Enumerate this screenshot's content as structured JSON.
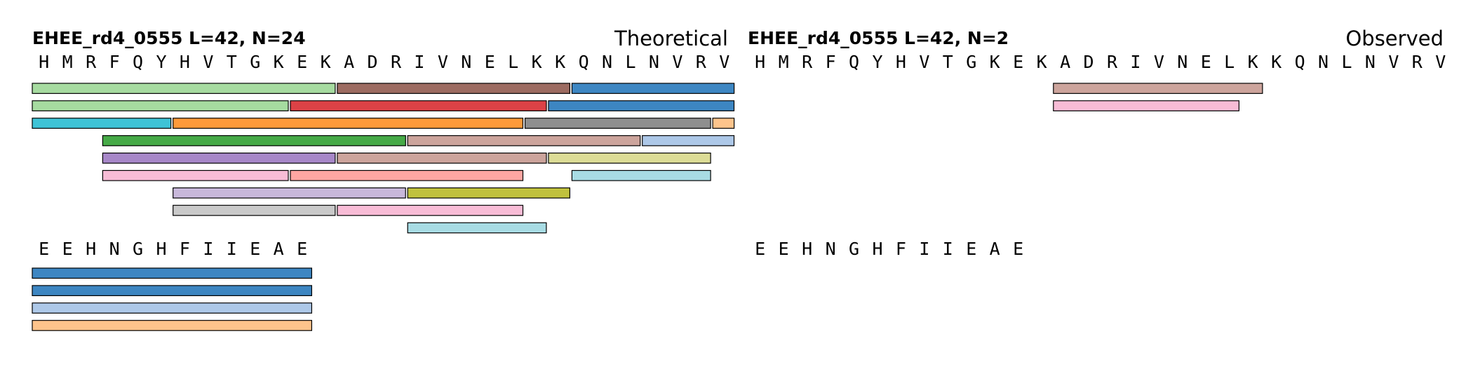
{
  "panels": [
    {
      "id": "theoretical",
      "title": "EHEE_rd4_0555  L=42, N=24",
      "label": "Theoretical",
      "rows": [
        {
          "sequence": [
            "H",
            "M",
            "R",
            "F",
            "Q",
            "Y",
            "H",
            "V",
            "T",
            "G",
            "K",
            "E",
            "K",
            "A",
            "D",
            "R",
            "I",
            "V",
            "N",
            "E",
            "L",
            "K",
            "K",
            "Q",
            "N",
            "L",
            "N",
            "V",
            "R",
            "V"
          ],
          "peptides": [
            {
              "start": 1,
              "end": 13,
              "color": "#a6dba0"
            },
            {
              "start": 14,
              "end": 23,
              "color": "#9c6b61"
            },
            {
              "start": 24,
              "end": 30,
              "color": "#3d86c2"
            },
            {
              "start": 1,
              "end": 11,
              "color": "#a6dba0"
            },
            {
              "start": 12,
              "end": 22,
              "color": "#dc4246"
            },
            {
              "start": 23,
              "end": 30,
              "color": "#3d86c2"
            },
            {
              "start": 1,
              "end": 6,
              "color": "#3ec3d6"
            },
            {
              "start": 7,
              "end": 21,
              "color": "#fe9a3a"
            },
            {
              "start": 22,
              "end": 29,
              "color": "#8f8f8f"
            },
            {
              "start": 30,
              "end": 30,
              "color": "#fec48c"
            },
            {
              "start": 4,
              "end": 16,
              "color": "#46aa47"
            },
            {
              "start": 17,
              "end": 26,
              "color": "#cca49c"
            },
            {
              "start": 27,
              "end": 30,
              "color": "#adc8e8"
            },
            {
              "start": 4,
              "end": 13,
              "color": "#a787c8"
            },
            {
              "start": 14,
              "end": 22,
              "color": "#cca49c"
            },
            {
              "start": 23,
              "end": 29,
              "color": "#dcdc96"
            },
            {
              "start": 4,
              "end": 11,
              "color": "#f8bcd6"
            },
            {
              "start": 12,
              "end": 21,
              "color": "#ffa6a2"
            },
            {
              "start": 24,
              "end": 29,
              "color": "#a8dce4"
            },
            {
              "start": 7,
              "end": 16,
              "color": "#c8b8da"
            },
            {
              "start": 17,
              "end": 23,
              "color": "#c0c13e"
            },
            {
              "start": 7,
              "end": 13,
              "color": "#c9c9c9"
            },
            {
              "start": 14,
              "end": 21,
              "color": "#f8bcd6"
            },
            {
              "start": 17,
              "end": 22,
              "color": "#a8dce4"
            }
          ]
        },
        {
          "sequence": [
            "E",
            "E",
            "H",
            "N",
            "G",
            "H",
            "F",
            "I",
            "I",
            "E",
            "A",
            "E"
          ],
          "peptides": [
            {
              "start": 1,
              "end": 12,
              "color": "#3d86c2"
            },
            {
              "start": 1,
              "end": 12,
              "color": "#3d86c2"
            },
            {
              "start": 1,
              "end": 12,
              "color": "#adc8e8"
            },
            {
              "start": 1,
              "end": 12,
              "color": "#fec48c"
            }
          ]
        }
      ]
    },
    {
      "id": "observed",
      "title": "EHEE_rd4_0555  L=42, N=2",
      "label": "Observed",
      "rows": [
        {
          "sequence": [
            "H",
            "M",
            "R",
            "F",
            "Q",
            "Y",
            "H",
            "V",
            "T",
            "G",
            "K",
            "E",
            "K",
            "A",
            "D",
            "R",
            "I",
            "V",
            "N",
            "E",
            "L",
            "K",
            "K",
            "Q",
            "N",
            "L",
            "N",
            "V",
            "R",
            "V"
          ],
          "peptides": [
            {
              "start": 14,
              "end": 22,
              "color": "#cca49c"
            },
            {
              "start": 14,
              "end": 21,
              "color": "#f8bcd6"
            }
          ]
        },
        {
          "sequence": [
            "E",
            "E",
            "H",
            "N",
            "G",
            "H",
            "F",
            "I",
            "I",
            "E",
            "A",
            "E"
          ],
          "peptides": []
        }
      ]
    }
  ]
}
